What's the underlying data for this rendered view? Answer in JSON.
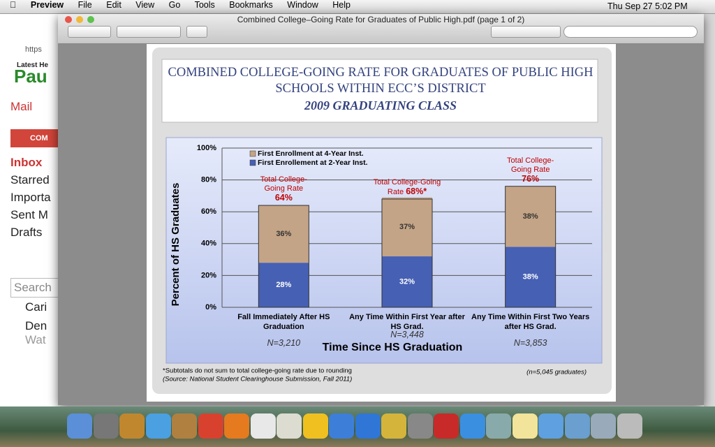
{
  "menu_bar": {
    "app": "Preview",
    "items": [
      "File",
      "Edit",
      "View",
      "Go",
      "Tools",
      "Bookmarks",
      "Window",
      "Help"
    ],
    "clock": "Thu Sep 27  5:02 PM"
  },
  "browser": {
    "address": "https",
    "bookmark": "Latest He",
    "logo": "Pau",
    "mail": "Mail",
    "compose": "COM",
    "folders": [
      "Inbox",
      "Starred",
      "Importa",
      "Sent M",
      "Drafts"
    ],
    "search": "Search",
    "contacts": [
      "Cari",
      "Den",
      "Wat"
    ]
  },
  "window": {
    "title": "Combined College–Going Rate for Graduates of Public High.pdf (page 1 of 2)"
  },
  "slide": {
    "title": "COMBINED COLLEGE-GOING RATE FOR GRADUATES OF PUBLIC HIGH SCHOOLS WITHIN ECC’S DISTRICT",
    "subtitle": "2009 GRADUATING CLASS",
    "footnotes": [
      "*Subtotals do not sum to total college-going rate due to rounding",
      "(Source: National Student Clearinghouse Submission, Fall 2011)"
    ],
    "total_n": "(n=5,045 graduates)"
  },
  "chart_data": {
    "type": "stacked_bar",
    "x_label": "Time Since HS Graduation",
    "y_label": "Percent of HS Graduates",
    "categories": [
      "Fall Immediately After HS Graduation",
      "Any Time Within  First Year after HS Grad.",
      "Any Time Within First Two Years after  HS Grad."
    ],
    "sample_sizes": [
      "N=3,210",
      "N=3,448",
      "N=3,853"
    ],
    "series": [
      {
        "name": "First Enrollment at 4-Year Inst.",
        "color": "#c4a486",
        "values": [
          36,
          37,
          38
        ],
        "value_labels": [
          "36%",
          "37%",
          "38%"
        ]
      },
      {
        "name": "First Enrollement at 2-Year Inst.",
        "color": "#4660b4",
        "values": [
          28,
          32,
          38
        ],
        "value_labels": [
          "28%",
          "32%",
          "38%"
        ]
      }
    ],
    "total_captions": [
      "Total College-Going Rate",
      "Total College-Going Rate",
      "Total College-Going Rate"
    ],
    "totals": [
      64,
      68,
      76
    ],
    "total_labels": [
      "64%",
      "68%*",
      "76%"
    ],
    "ylim": [
      0,
      100
    ],
    "yticks": [
      {
        "value": 0,
        "label": "0%"
      },
      {
        "value": 20,
        "label": "20%"
      },
      {
        "value": 40,
        "label": "40%"
      },
      {
        "value": 60,
        "label": "60%"
      },
      {
        "value": 80,
        "label": "80%"
      },
      {
        "value": 100,
        "label": "100%"
      }
    ],
    "grid": true,
    "legend": "upper left"
  }
}
